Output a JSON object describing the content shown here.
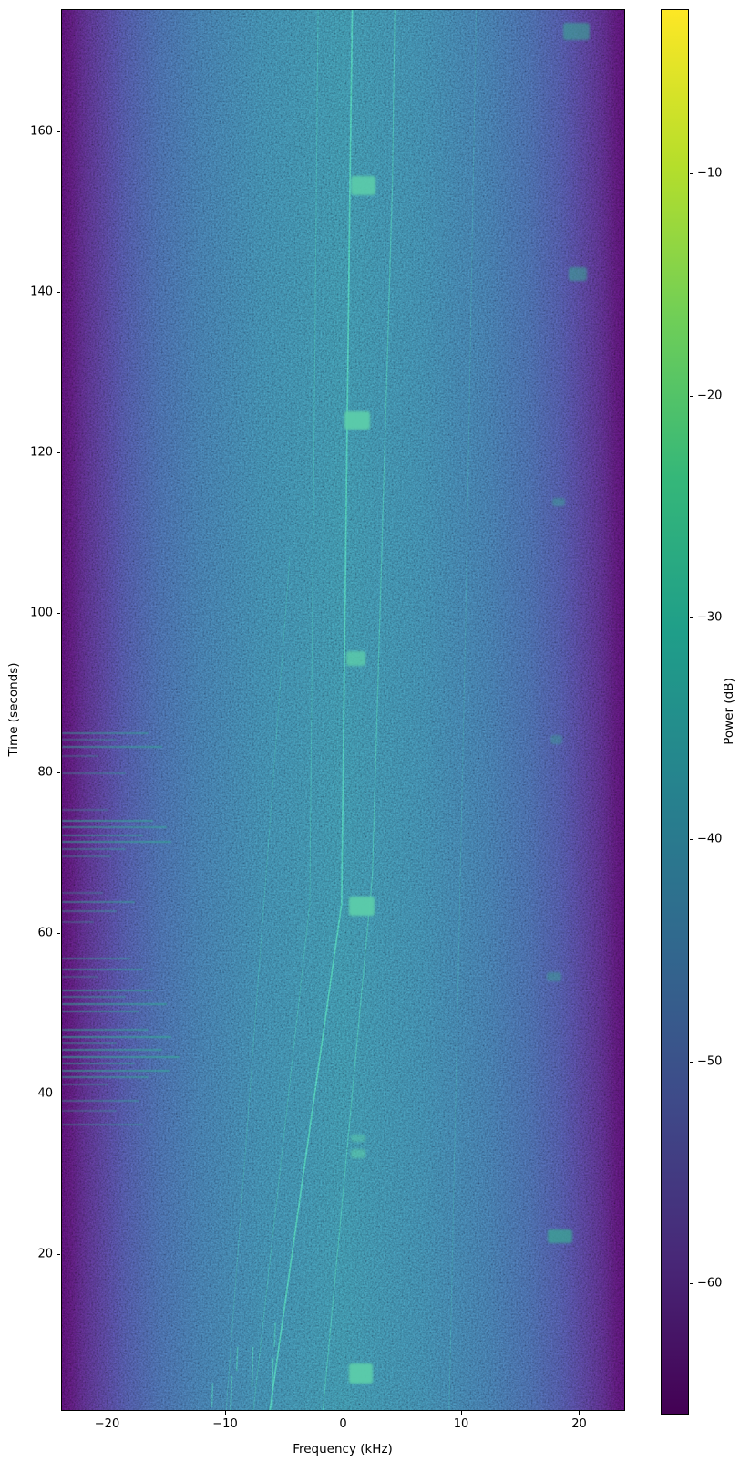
{
  "figure": {
    "xlabel": "Frequency (kHz)",
    "ylabel": "Time (seconds)",
    "colorbar_label": "Power (dB)"
  },
  "chart_data": {
    "type": "heatmap",
    "subtype": "spectrogram",
    "title": "",
    "xlabel": "Frequency (kHz)",
    "ylabel": "Time (seconds)",
    "xlim": [
      -23.9,
      23.9
    ],
    "ylim": [
      0.4,
      175.3
    ],
    "grid": false,
    "x_ticks": [
      {
        "v": -20,
        "label": "−20"
      },
      {
        "v": -10,
        "label": "−10"
      },
      {
        "v": 0,
        "label": "0"
      },
      {
        "v": 10,
        "label": "10"
      },
      {
        "v": 20,
        "label": "20"
      }
    ],
    "y_ticks": [
      {
        "v": 20,
        "label": "20"
      },
      {
        "v": 40,
        "label": "40"
      },
      {
        "v": 60,
        "label": "60"
      },
      {
        "v": 80,
        "label": "80"
      },
      {
        "v": 100,
        "label": "100"
      },
      {
        "v": 120,
        "label": "120"
      },
      {
        "v": 140,
        "label": "140"
      },
      {
        "v": 160,
        "label": "160"
      }
    ],
    "colorbar": {
      "label": "Power (dB)",
      "range": [
        -65.9,
        -2.6
      ],
      "ticks": [
        {
          "v": -10,
          "label": "−10"
        },
        {
          "v": -20,
          "label": "−20"
        },
        {
          "v": -30,
          "label": "−30"
        },
        {
          "v": -40,
          "label": "−40"
        },
        {
          "v": -50,
          "label": "−50"
        },
        {
          "v": -60,
          "label": "−60"
        }
      ],
      "viridis_stops_top_to_bottom": [
        "#fde725",
        "#b5de2b",
        "#6ece58",
        "#35b779",
        "#1f9e89",
        "#26828e",
        "#31688e",
        "#3e4a89",
        "#482878",
        "#440154"
      ]
    },
    "background_profile_stops": [
      [
        0,
        "#440a5c"
      ],
      [
        1.6,
        "#45115f"
      ],
      [
        4,
        "#44206d"
      ],
      [
        7.3,
        "#413079"
      ],
      [
        11.3,
        "#3b4285"
      ],
      [
        17,
        "#35538b"
      ],
      [
        24.2,
        "#31608d"
      ],
      [
        35.5,
        "#2e6d8e"
      ],
      [
        50,
        "#2d758c"
      ],
      [
        64.5,
        "#2e6d8e"
      ],
      [
        75.8,
        "#31608d"
      ],
      [
        83,
        "#35538b"
      ],
      [
        88.7,
        "#3b4285"
      ],
      [
        92.7,
        "#413079"
      ],
      [
        96,
        "#44206d"
      ],
      [
        98.4,
        "#45115f"
      ],
      [
        100,
        "#440a5c"
      ]
    ],
    "drifting_tones": [
      {
        "points": [
          [
            -6.3,
            0.4
          ],
          [
            -0.2,
            63.8
          ],
          [
            0.5,
            153.7
          ],
          [
            0.7,
            175.3
          ]
        ],
        "width": 1.7,
        "opacity": 0.8
      },
      {
        "points": [
          [
            -1.8,
            0.4
          ],
          [
            2.4,
            67.2
          ],
          [
            4.1,
            153.7
          ],
          [
            4.3,
            175.3
          ]
        ],
        "width": 1.2,
        "opacity": 0.5
      },
      {
        "points": [
          [
            -7.7,
            0.4
          ],
          [
            -2.9,
            63.8
          ],
          [
            -2.2,
            175.3
          ]
        ],
        "width": 1.0,
        "opacity": 0.32
      },
      {
        "points": [
          [
            -10.0,
            0.4
          ],
          [
            -4.6,
            107.0
          ]
        ],
        "width": 1.0,
        "opacity": 0.22
      },
      {
        "points": [
          [
            8.9,
            0.4
          ],
          [
            10.3,
            99.0
          ],
          [
            11.2,
            175.3
          ]
        ],
        "width": 1.0,
        "opacity": 0.18
      }
    ],
    "tone_dashes": [
      {
        "f": -11.2,
        "t": 1.0,
        "len": 3.0,
        "opacity": 0.4
      },
      {
        "f": -9.6,
        "t": 0.4,
        "len": 4.5,
        "opacity": 0.55
      },
      {
        "f": -9.1,
        "t": 5.5,
        "len": 3.0,
        "opacity": 0.45
      },
      {
        "f": -7.8,
        "t": 3.5,
        "len": 5.0,
        "opacity": 0.5
      },
      {
        "f": -6.1,
        "t": 0.6,
        "len": 6.5,
        "opacity": 0.6
      },
      {
        "f": -5.9,
        "t": 8.5,
        "len": 3.0,
        "opacity": 0.45
      }
    ],
    "periodic_bursts": [
      {
        "f_center": 1.4,
        "f_width": 2.0,
        "t_center": 5.2,
        "t_span": 2.5,
        "opacity": 0.95,
        "kind": "mid"
      },
      {
        "f_center": 1.2,
        "f_width": 1.3,
        "t_center": 32.6,
        "t_span": 1.1,
        "opacity": 0.6,
        "kind": "mid"
      },
      {
        "f_center": 1.2,
        "f_width": 1.3,
        "t_center": 34.5,
        "t_span": 0.9,
        "opacity": 0.5,
        "kind": "mid"
      },
      {
        "f_center": 1.5,
        "f_width": 2.1,
        "t_center": 63.5,
        "t_span": 2.3,
        "opacity": 0.95,
        "kind": "mid"
      },
      {
        "f_center": 1.0,
        "f_width": 1.6,
        "t_center": 94.4,
        "t_span": 1.9,
        "opacity": 0.8,
        "kind": "mid"
      },
      {
        "f_center": 1.1,
        "f_width": 2.2,
        "t_center": 124.1,
        "t_span": 2.3,
        "opacity": 0.95,
        "kind": "mid"
      },
      {
        "f_center": 1.6,
        "f_width": 2.1,
        "t_center": 153.4,
        "t_span": 2.4,
        "opacity": 0.9,
        "kind": "mid"
      },
      {
        "f_center": 18.3,
        "f_width": 2.1,
        "t_center": 22.3,
        "t_span": 1.8,
        "opacity": 0.8,
        "kind": "edge"
      },
      {
        "f_center": 17.8,
        "f_width": 1.3,
        "t_center": 54.7,
        "t_span": 1.2,
        "opacity": 0.5,
        "kind": "edge"
      },
      {
        "f_center": 18.0,
        "f_width": 1.0,
        "t_center": 84.3,
        "t_span": 1.1,
        "opacity": 0.45,
        "kind": "edge"
      },
      {
        "f_center": 18.2,
        "f_width": 1.1,
        "t_center": 113.9,
        "t_span": 1.1,
        "opacity": 0.5,
        "kind": "edge"
      },
      {
        "f_center": 19.8,
        "f_width": 1.5,
        "t_center": 142.4,
        "t_span": 1.7,
        "opacity": 0.6,
        "kind": "edge"
      },
      {
        "f_center": 19.7,
        "f_width": 2.2,
        "t_center": 172.6,
        "t_span": 2.2,
        "opacity": 0.65,
        "kind": "edge"
      }
    ],
    "noise_streaks": [
      [
        85.1,
        -16.6,
        0.5
      ],
      [
        84.3,
        -19.3,
        0.35
      ],
      [
        83.4,
        -15.4,
        0.55
      ],
      [
        82.2,
        -20.8,
        0.3
      ],
      [
        80.0,
        -18.5,
        0.35
      ],
      [
        75.5,
        -20.0,
        0.3
      ],
      [
        74.1,
        -16.2,
        0.6
      ],
      [
        73.3,
        -15.0,
        0.55
      ],
      [
        72.3,
        -17.0,
        0.5
      ],
      [
        71.5,
        -14.6,
        0.6
      ],
      [
        70.6,
        -18.5,
        0.4
      ],
      [
        69.7,
        -19.7,
        0.35
      ],
      [
        65.2,
        -20.4,
        0.3
      ],
      [
        64.0,
        -17.7,
        0.5
      ],
      [
        62.9,
        -19.3,
        0.4
      ],
      [
        61.5,
        -21.2,
        0.3
      ],
      [
        57.0,
        -18.1,
        0.45
      ],
      [
        55.6,
        -17.0,
        0.5
      ],
      [
        54.7,
        -20.8,
        0.3
      ],
      [
        53.0,
        -16.2,
        0.55
      ],
      [
        52.2,
        -18.5,
        0.45
      ],
      [
        51.3,
        -15.0,
        0.6
      ],
      [
        50.4,
        -17.3,
        0.5
      ],
      [
        48.1,
        -16.6,
        0.55
      ],
      [
        47.2,
        -14.6,
        0.65
      ],
      [
        46.4,
        -19.3,
        0.4
      ],
      [
        45.6,
        -15.4,
        0.6
      ],
      [
        44.7,
        -13.9,
        0.65
      ],
      [
        43.9,
        -17.7,
        0.5
      ],
      [
        43.0,
        -14.8,
        0.6
      ],
      [
        42.2,
        -16.6,
        0.55
      ],
      [
        41.3,
        -20.0,
        0.35
      ],
      [
        39.2,
        -17.3,
        0.4
      ],
      [
        37.9,
        -19.3,
        0.3
      ],
      [
        36.3,
        -17.0,
        0.35
      ]
    ],
    "colors": {
      "tone": "#3fc4a1",
      "burst_mid": "#5ccdaa",
      "burst_edge": "#3da295",
      "streak": "#35ab97",
      "spine": "#000000",
      "figure_background": "#ffffff"
    }
  }
}
